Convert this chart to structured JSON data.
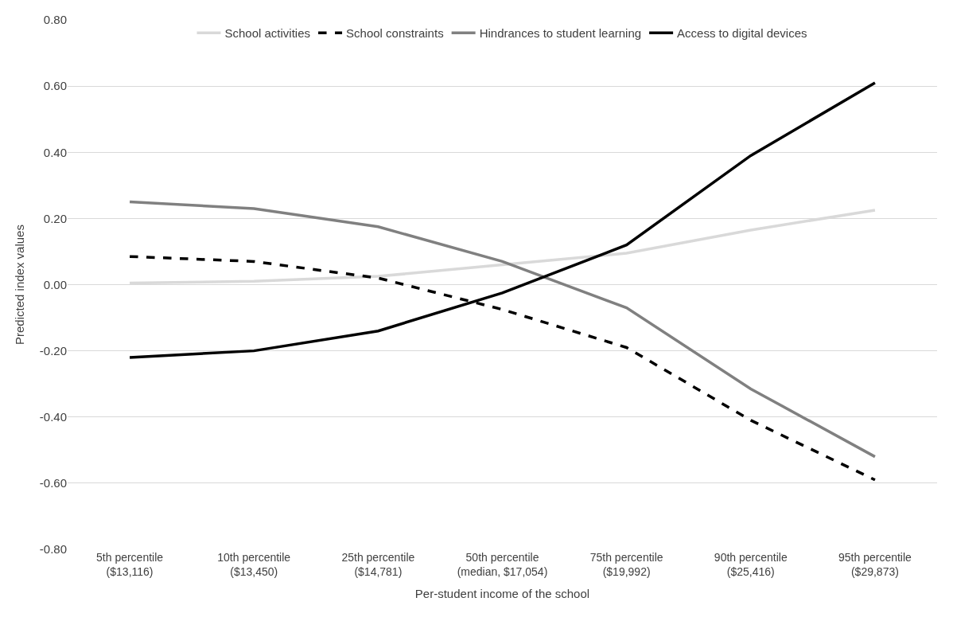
{
  "chart_data": {
    "type": "line",
    "xlabel": "Per-student income of the school",
    "ylabel": "Predicted index values",
    "categories": [
      "5th percentile\n($13,116)",
      "10th percentile\n($13,450)",
      "25th percentile\n($14,781)",
      "50th percentile\n(median, $17,054)",
      "75th percentile\n($19,992)",
      "90th percentile\n($25,416)",
      "95th percentile\n($29,873)"
    ],
    "series": [
      {
        "name": "School activities",
        "color": "#d9d9d9",
        "line_style": "solid",
        "values": [
          0.005,
          0.01,
          0.025,
          0.06,
          0.095,
          0.165,
          0.225
        ]
      },
      {
        "name": "School constraints",
        "color": "#000000",
        "line_style": "dashed",
        "values": [
          0.085,
          0.07,
          0.02,
          -0.075,
          -0.19,
          -0.41,
          -0.59
        ]
      },
      {
        "name": "Hindrances to student learning",
        "color": "#808080",
        "line_style": "solid",
        "values": [
          0.25,
          0.23,
          0.175,
          0.07,
          -0.07,
          -0.315,
          -0.52
        ]
      },
      {
        "name": "Access to digital devices",
        "color": "#000000",
        "line_style": "solid",
        "values": [
          -0.22,
          -0.2,
          -0.14,
          -0.025,
          0.12,
          0.39,
          0.61
        ]
      }
    ],
    "ylim": [
      -0.8,
      0.8
    ],
    "yticks": [
      {
        "value": -0.8,
        "label": "-0.80"
      },
      {
        "value": -0.6,
        "label": "-0.60"
      },
      {
        "value": -0.4,
        "label": "-0.40"
      },
      {
        "value": -0.2,
        "label": "-0.20"
      },
      {
        "value": 0,
        "label": "0.00"
      },
      {
        "value": 0.2,
        "label": "0.20"
      },
      {
        "value": 0.4,
        "label": "0.40"
      },
      {
        "value": 0.6,
        "label": "0.60"
      },
      {
        "value": 0.8,
        "label": "0.80"
      }
    ],
    "grid": "y",
    "legend": "top",
    "marker": "none"
  }
}
